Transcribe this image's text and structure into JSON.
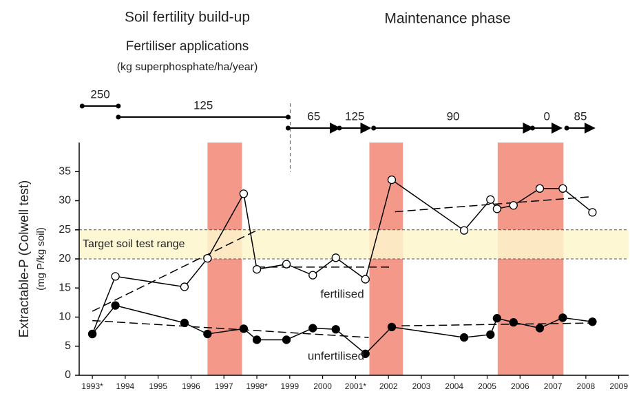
{
  "chart_data": {
    "type": "line",
    "phases": [
      {
        "title": "Soil fertility build-up",
        "applications": [
          {
            "rate": 250,
            "start": 1992.69,
            "end": 1993.79
          },
          {
            "rate": 125,
            "start": 1993.79,
            "end": 1998.95
          }
        ]
      },
      {
        "title": "Maintenance phase",
        "applications": [
          {
            "rate": 65,
            "start": 1998.95,
            "end": 2000.51
          },
          {
            "rate": 125,
            "start": 2000.51,
            "end": 2001.44
          },
          {
            "rate": 90,
            "start": 2001.55,
            "end": 2006.38
          },
          {
            "rate": 0,
            "start": 2006.38,
            "end": 2007.25
          },
          {
            "rate": 85,
            "start": 2007.42,
            "end": 2008.25
          }
        ]
      }
    ],
    "applications_title": "Fertiliser applications",
    "applications_unit": "(kg superphosphate/ha/year)",
    "ylabel": "Extractable-P (Colwell test)",
    "ylabel_unit": "(mg P/kg soil)",
    "xlim": [
      1992.6,
      2009.3
    ],
    "ylim": [
      0,
      40
    ],
    "yticks": [
      0,
      5,
      10,
      15,
      20,
      25,
      30,
      35
    ],
    "xticks": [
      {
        "value": 1993,
        "label": "1993*"
      },
      1994,
      1995,
      1996,
      1997,
      {
        "value": 1998,
        "label": "1998*"
      },
      1999,
      2000,
      {
        "value": 2001,
        "label": "2001*"
      },
      2002,
      2003,
      2004,
      2005,
      2006,
      2007,
      2008,
      2009
    ],
    "highlight_bands": {
      "color": "#f4998a",
      "ranges": [
        [
          1996.5,
          1997.55
        ],
        [
          2001.42,
          2002.44
        ],
        [
          2005.32,
          2007.32
        ]
      ]
    },
    "target": {
      "label": "Target soil test range",
      "range": [
        20,
        25
      ],
      "color": "#fdf6cc"
    },
    "series": [
      {
        "name": "fertilised",
        "color": "#000000",
        "marker_fill": "#ffffff",
        "x": [
          1993.0,
          1993.7,
          1995.8,
          1996.5,
          1997.6,
          1998.0,
          1998.9,
          1999.7,
          2000.4,
          2001.3,
          2002.1,
          2004.3,
          2005.1,
          2005.3,
          2005.8,
          2006.6,
          2007.3,
          2008.2
        ],
        "values": [
          7.1,
          17.0,
          15.2,
          20.1,
          31.2,
          18.2,
          19.1,
          17.2,
          20.2,
          16.5,
          33.6,
          24.9,
          30.2,
          28.6,
          29.2,
          32.1,
          32.1,
          28.0
        ],
        "trend": [
          {
            "x": [
              1993.0,
              1997.96
            ],
            "values": [
              11.0,
              24.8
            ]
          },
          {
            "x": [
              1998.0,
              2002.07
            ],
            "values": [
              18.6,
              18.6
            ]
          },
          {
            "x": [
              2002.2,
              2008.2
            ],
            "values": [
              28.1,
              30.7
            ]
          }
        ]
      },
      {
        "name": "unfertilised",
        "color": "#000000",
        "marker_fill": "#000000",
        "x": [
          1993.0,
          1993.7,
          1995.8,
          1996.5,
          1997.6,
          1998.0,
          1998.9,
          1999.7,
          2000.4,
          2001.3,
          2002.1,
          2004.3,
          2005.1,
          2005.3,
          2005.8,
          2006.6,
          2007.3,
          2008.2
        ],
        "values": [
          7.1,
          12.0,
          9.0,
          7.1,
          8.0,
          6.1,
          6.1,
          8.1,
          7.9,
          3.7,
          8.3,
          6.5,
          7.0,
          9.8,
          9.1,
          8.1,
          9.9,
          9.2
        ],
        "trend": [
          {
            "x": [
              1993.0,
              2001.4
            ],
            "values": [
              9.4,
              6.5
            ]
          },
          {
            "x": [
              2002.4,
              2008.4
            ],
            "values": [
              8.5,
              9.0
            ]
          }
        ]
      }
    ]
  }
}
